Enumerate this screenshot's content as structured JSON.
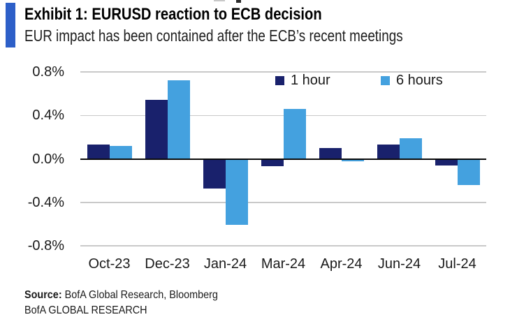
{
  "header": {
    "exhibit_title": "Exhibit 1: EURUSD reaction to ECB decision",
    "subtitle": "EUR impact has been contained after the ECB’s recent meetings",
    "accent_color": "#2d5fc8"
  },
  "chart_data": {
    "type": "bar",
    "title": "EURUSD reaction to ECB decision",
    "categories": [
      "Oct-23",
      "Dec-23",
      "Jan-24",
      "Mar-24",
      "Apr-24",
      "Jun-24",
      "Jul-24"
    ],
    "series": [
      {
        "name": "1 hour",
        "color": "#19216c",
        "values": [
          0.13,
          0.54,
          -0.27,
          -0.07,
          0.1,
          0.13,
          -0.06
        ]
      },
      {
        "name": "6 hours",
        "color": "#44a1df",
        "values": [
          0.12,
          0.72,
          -0.61,
          0.46,
          -0.02,
          0.19,
          -0.24
        ]
      }
    ],
    "ylim": [
      -0.8,
      0.8
    ],
    "yticks": [
      "0.8%",
      "0.4%",
      "0.0%",
      "-0.4%",
      "-0.8%"
    ],
    "ytick_values": [
      0.8,
      0.4,
      0.0,
      -0.4,
      -0.8
    ],
    "grid": true,
    "legend_position": "top-inside",
    "zero_axis_color": "#0a0a0a",
    "gridline_color": "#c9c9c9"
  },
  "footer": {
    "source_label": "Source:",
    "source_text": " BofA Global Research, Bloomberg",
    "brand_line": "BofA GLOBAL RESEARCH"
  }
}
